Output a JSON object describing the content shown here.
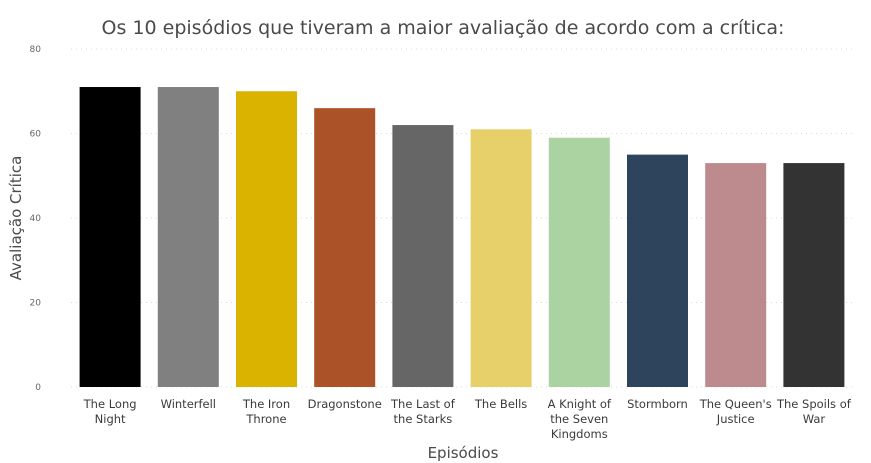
{
  "chart_data": {
    "type": "bar",
    "title": "Os 10 episódios que tiveram a maior avaliação de acordo com a crítica:",
    "xlabel": "Episódios",
    "ylabel": "Avaliação Crítica",
    "ylim": [
      0,
      80
    ],
    "yticks": [
      "0",
      "20",
      "40",
      "60",
      "80"
    ],
    "grid": true,
    "categories": [
      [
        "The Long",
        "Night"
      ],
      [
        "Winterfell"
      ],
      [
        "The Iron",
        "Throne"
      ],
      [
        "Dragonstone"
      ],
      [
        "The Last of",
        "the Starks"
      ],
      [
        "The Bells"
      ],
      [
        "A Knight of",
        "the Seven",
        "Kingdoms"
      ],
      [
        "Stormborn"
      ],
      [
        "The Queen's",
        "Justice"
      ],
      [
        "The Spoils of",
        "War"
      ]
    ],
    "values": [
      71,
      71,
      70,
      66,
      62,
      61,
      59,
      55,
      53,
      53
    ],
    "colors": [
      "#000000",
      "#808080",
      "#dab200",
      "#ac5228",
      "#666666",
      "#e7d069",
      "#abd3a2",
      "#2d445c",
      "#bd8a8d",
      "#333333"
    ]
  }
}
